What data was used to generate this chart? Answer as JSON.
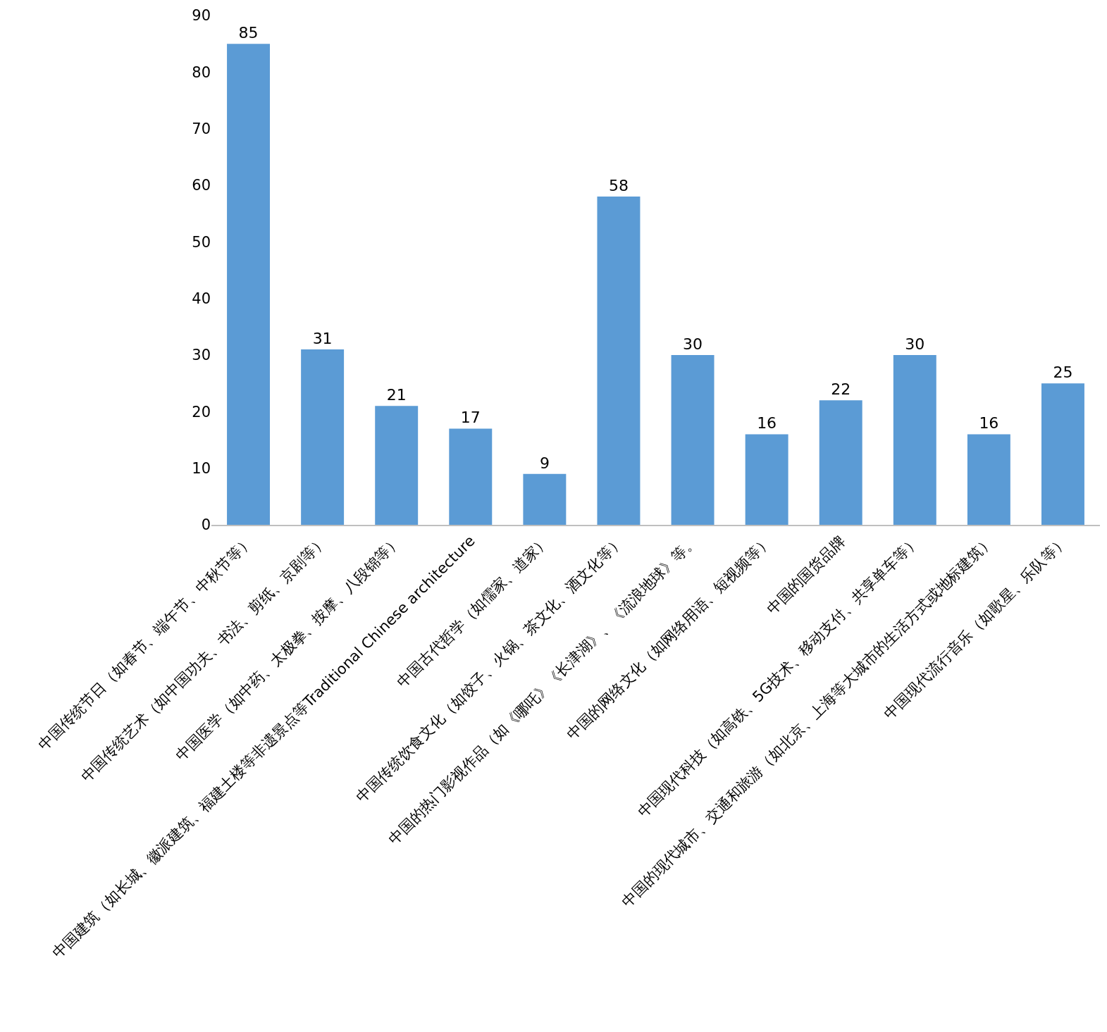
{
  "chart_data": {
    "type": "bar",
    "categories": [
      "中国传统节日（如春节、端午节、中秋节等）",
      "中国传统艺术（如中国功夫、书法、剪纸、京剧等）",
      "中国医学（如中药、太极拳、按摩、八段锦等）",
      "中国建筑（如长城、徽派建筑、福建土楼等非遗景点等Traditional Chinese architecture",
      "中国古代哲学（如儒家、道家）",
      "中国传统饮食文化（如饺子、火锅、茶文化、酒文化等）",
      "中国的热门影视作品（如《哪吒》《长津湖》、《流浪地球》等。",
      "中国的网络文化（如网络用语、短视频等）",
      "中国的国货品牌",
      "中国现代科技（如高铁、5G技术、移动支付、共享单车等）",
      "中国的现代城市、交通和旅游（如北京、上海等大城市的生活方式或地标建筑）",
      "中国现代流行音乐（如歌星、乐队等）"
    ],
    "values": [
      85,
      31,
      21,
      17,
      9,
      58,
      30,
      16,
      22,
      30,
      16,
      25
    ],
    "color": "#5b9bd5",
    "ylim": [
      0,
      90
    ],
    "yticks": [
      0,
      10,
      20,
      30,
      40,
      50,
      60,
      70,
      80,
      90
    ],
    "data_labels": true
  }
}
